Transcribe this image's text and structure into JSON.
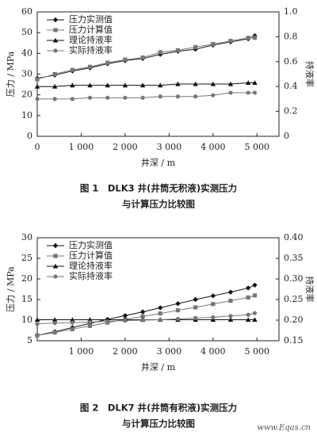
{
  "chart_data": [
    {
      "type": "line",
      "title": "图 1　DLK3 井(井筒无积液)实测压力",
      "subtitle": "与计算压力比较图",
      "xlabel": "井深 / m",
      "ylabel": "压力 / MPa",
      "y2label": "持液率",
      "x": [
        0,
        400,
        800,
        1200,
        1600,
        2000,
        2400,
        2800,
        3200,
        3600,
        4000,
        4400,
        4800,
        4950
      ],
      "series": [
        {
          "name": "压力实测值",
          "color": "#111111",
          "marker": "diamond",
          "values": [
            28,
            29.5,
            31.5,
            33,
            35,
            36.5,
            37.5,
            39.5,
            41,
            42,
            44,
            45.5,
            47,
            48.5
          ]
        },
        {
          "name": "压力计算值",
          "color": "#777777",
          "marker": "square",
          "values": [
            27.5,
            30,
            32,
            33.5,
            35.5,
            37,
            38,
            40.5,
            41.5,
            43,
            44.5,
            46,
            47.5,
            47.5
          ]
        },
        {
          "name": "理论持液率",
          "color": "#111111",
          "marker": "triangle",
          "axis": "y2",
          "values": [
            0.4,
            0.4,
            0.41,
            0.41,
            0.41,
            0.41,
            0.41,
            0.41,
            0.42,
            0.42,
            0.42,
            0.42,
            0.43,
            0.43
          ]
        },
        {
          "name": "实际持液率",
          "color": "#777777",
          "marker": "circle",
          "axis": "y2",
          "values": [
            0.3,
            0.3,
            0.3,
            0.31,
            0.31,
            0.31,
            0.31,
            0.32,
            0.32,
            0.32,
            0.33,
            0.35,
            0.35,
            0.35
          ]
        }
      ],
      "xlim": [
        0,
        5500
      ],
      "xticks": [
        0,
        {
          "value": 1000,
          "label": "1 000"
        },
        {
          "value": 2000,
          "label": "2 000"
        },
        {
          "value": 3000,
          "label": "3 000"
        },
        {
          "value": 4000,
          "label": "4 000"
        },
        {
          "value": 5000,
          "label": "5 000"
        }
      ],
      "ylim": [
        0,
        60
      ],
      "yticks": [
        0,
        10,
        20,
        30,
        40,
        50,
        60
      ],
      "y2lim": [
        0,
        1
      ],
      "y2ticks": [
        0,
        0.2,
        0.4,
        0.6,
        0.8,
        {
          "value": 1,
          "label": "1.0"
        }
      ],
      "grid": false,
      "legend": "upper left"
    },
    {
      "type": "line",
      "title": "图 2　DLK7 井(井筒有积液)实测压力",
      "subtitle": "与计算压力比较图",
      "xlabel": "井深 / m",
      "ylabel": "压力 / MPa",
      "y2label": "持液率",
      "x": [
        0,
        400,
        800,
        1200,
        1600,
        2000,
        2400,
        2800,
        3200,
        3600,
        4000,
        4400,
        4800,
        4950
      ],
      "series": [
        {
          "name": "压力实测值",
          "color": "#111111",
          "marker": "diamond",
          "values": [
            6.3,
            7.2,
            8.2,
            9.2,
            10.2,
            11.1,
            12,
            13,
            14,
            15,
            15.9,
            16.8,
            17.8,
            18.5
          ]
        },
        {
          "name": "压力计算值",
          "color": "#777777",
          "marker": "square",
          "values": [
            6.3,
            7,
            7.8,
            8.6,
            9.4,
            10.2,
            10.9,
            11.6,
            12.4,
            13.1,
            13.9,
            14.7,
            15.5,
            16
          ]
        },
        {
          "name": "理论持液率",
          "color": "#111111",
          "marker": "triangle",
          "axis": "y2",
          "values": [
            0.201,
            0.201,
            0.201,
            0.201,
            0.201,
            0.201,
            0.201,
            0.201,
            0.201,
            0.201,
            0.201,
            0.201,
            0.201,
            0.201
          ]
        },
        {
          "name": "实际持液率",
          "color": "#777777",
          "marker": "circle",
          "axis": "y2",
          "values": [
            0.191,
            0.193,
            0.194,
            0.195,
            0.197,
            0.199,
            0.2,
            0.201,
            0.203,
            0.205,
            0.207,
            0.21,
            0.213,
            0.217
          ]
        }
      ],
      "xlim": [
        0,
        5500
      ],
      "xticks": [
        {
          "value": 1000,
          "label": "1 000"
        },
        {
          "value": 2000,
          "label": "2 000"
        },
        {
          "value": 3000,
          "label": "3 000"
        },
        {
          "value": 4000,
          "label": "4 000"
        },
        {
          "value": 5000,
          "label": "5 000"
        }
      ],
      "ylim": [
        5,
        30
      ],
      "yticks": [
        5,
        10,
        15,
        20,
        25,
        30
      ],
      "y2lim": [
        0.15,
        0.4
      ],
      "y2ticks": [
        0.15,
        {
          "value": 0.2,
          "label": "0.20"
        },
        0.25,
        {
          "value": 0.3,
          "label": "0.30"
        },
        0.35,
        {
          "value": 0.4,
          "label": "0.40"
        }
      ],
      "grid": false,
      "legend": "upper left"
    }
  ],
  "watermark": "www.Eqas.cn"
}
